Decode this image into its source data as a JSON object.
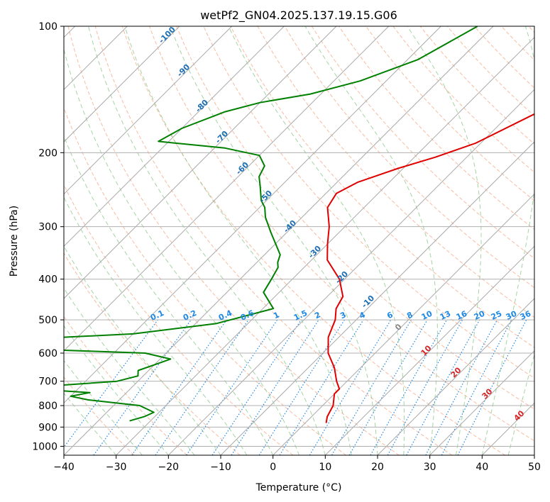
{
  "chart_data": {
    "type": "line",
    "subtype": "skew-t log-p diagram",
    "title": "wetPf2_GN04.2025.137.19.15.G06",
    "xlabel": "Temperature (°C)",
    "ylabel": "Pressure (hPa)",
    "xlim": [
      -40,
      50
    ],
    "ylim": [
      1050,
      100
    ],
    "y_scale": "log",
    "x_ticks": [
      "−40",
      "−30",
      "−20",
      "−10",
      "0",
      "10",
      "20",
      "30",
      "40",
      "50"
    ],
    "y_ticks": [
      "100",
      "200",
      "300",
      "400",
      "500",
      "600",
      "700",
      "800",
      "900",
      "1000"
    ],
    "grid": true,
    "series": [
      {
        "color": "#e00000",
        "role": "temperature",
        "points": [
          [
            1.0,
            100
          ],
          [
            0,
            110
          ],
          [
            -5,
            118
          ],
          [
            -10,
            140
          ],
          [
            -16,
            165
          ],
          [
            -21,
            190
          ],
          [
            -26,
            205
          ],
          [
            -31,
            218
          ],
          [
            -36,
            235
          ],
          [
            -38,
            250
          ],
          [
            -37,
            270
          ],
          [
            -33,
            300
          ],
          [
            -30,
            330
          ],
          [
            -27,
            360
          ],
          [
            -21,
            400
          ],
          [
            -17,
            440
          ],
          [
            -16,
            470
          ],
          [
            -14,
            500
          ],
          [
            -12,
            550
          ],
          [
            -9,
            600
          ],
          [
            -5,
            650
          ],
          [
            -2,
            700
          ],
          [
            0,
            730
          ],
          [
            0,
            750
          ],
          [
            2,
            800
          ],
          [
            3,
            850
          ],
          [
            4,
            880
          ]
        ]
      },
      {
        "color": "#008000",
        "role": "dewpoint",
        "points": [
          [
            -43,
            100
          ],
          [
            -48,
            120
          ],
          [
            -55,
            135
          ],
          [
            -62,
            145
          ],
          [
            -70,
            152
          ],
          [
            -75,
            160
          ],
          [
            -80,
            175
          ],
          [
            -82,
            188
          ],
          [
            -78,
            190
          ],
          [
            -68,
            195
          ],
          [
            -60,
            203
          ],
          [
            -57,
            215
          ],
          [
            -56,
            228
          ],
          [
            -54,
            240
          ],
          [
            -51,
            260
          ],
          [
            -49,
            270
          ],
          [
            -47,
            285
          ],
          [
            -43,
            310
          ],
          [
            -37,
            350
          ],
          [
            -36,
            365
          ],
          [
            -35,
            375
          ],
          [
            -34,
            400
          ],
          [
            -33,
            430
          ],
          [
            -28,
            470
          ],
          [
            -36,
            510
          ],
          [
            -50,
            540
          ],
          [
            -75,
            560
          ],
          [
            -90,
            570
          ],
          [
            -70,
            585
          ],
          [
            -44,
            600
          ],
          [
            -38,
            620
          ],
          [
            -40,
            640
          ],
          [
            -42,
            660
          ],
          [
            -41,
            680
          ],
          [
            -44,
            700
          ],
          [
            -60,
            725
          ],
          [
            -55,
            735
          ],
          [
            -47,
            745
          ],
          [
            -50,
            760
          ],
          [
            -46,
            775
          ],
          [
            -35,
            800
          ],
          [
            -31,
            830
          ],
          [
            -32,
            850
          ],
          [
            -34,
            870
          ]
        ]
      }
    ],
    "dry_adiabat_labels": [
      "-100",
      "-90",
      "-80",
      "-70",
      "-60",
      "-50",
      "-40",
      "-30",
      "-20",
      "-10"
    ],
    "mixing_ratio_labels": [
      "0.1",
      "0.2",
      "0.4",
      "0.6",
      "1",
      "1.5",
      "2",
      "3",
      "4",
      "6",
      "8",
      "10",
      "13",
      "16",
      "20",
      "25",
      "30",
      "36"
    ],
    "moist_adiabat_labels": [
      "0",
      "10",
      "20",
      "30",
      "40"
    ],
    "colors": {
      "isotherm": "#aaaaaa",
      "dry_adiabat": "#f4a582",
      "moist_adiabat": "#8fc98f",
      "mixing_ratio": "#1e88e5",
      "dry_label": "#1f6fb4",
      "mixing_label": "#1e88e5",
      "moist_label": "#d62728"
    }
  }
}
